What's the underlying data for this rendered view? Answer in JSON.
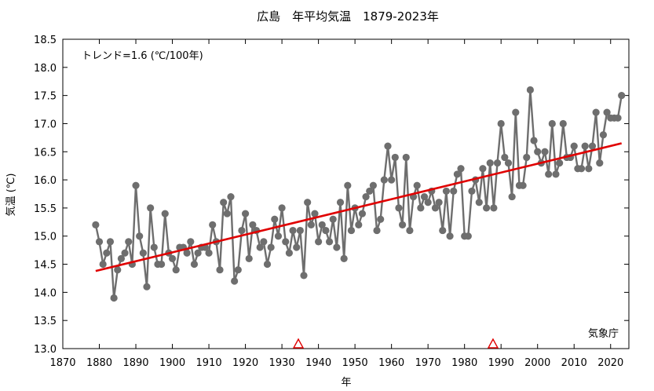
{
  "chart_data": {
    "type": "line",
    "title": "広島　年平均気温　1879-2023年",
    "xlabel": "年",
    "ylabel": "気温 (℃)",
    "xlim": [
      1870,
      2025
    ],
    "ylim": [
      13.0,
      18.5
    ],
    "x_ticks": [
      1870,
      1880,
      1890,
      1900,
      1910,
      1920,
      1930,
      1940,
      1950,
      1960,
      1970,
      1980,
      1990,
      2000,
      2010,
      2020
    ],
    "y_ticks": [
      13.0,
      13.5,
      14.0,
      14.5,
      15.0,
      15.5,
      16.0,
      16.5,
      17.0,
      17.5,
      18.0,
      18.5
    ],
    "x_tick_labels": [
      "1870",
      "1880",
      "1890",
      "1900",
      "1910",
      "1920",
      "1930",
      "1940",
      "1950",
      "1960",
      "1970",
      "1980",
      "1990",
      "2000",
      "2010",
      "2020"
    ],
    "y_tick_labels": [
      "13.0",
      "13.5",
      "14.0",
      "14.5",
      "15.0",
      "15.5",
      "16.0",
      "16.5",
      "17.0",
      "17.5",
      "18.0",
      "18.5"
    ],
    "grid": false,
    "legend": "none",
    "series": [
      {
        "color": "#6e6e6e",
        "x": [
          1879,
          1880,
          1881,
          1882,
          1883,
          1884,
          1885,
          1886,
          1887,
          1888,
          1889,
          1890,
          1891,
          1892,
          1893,
          1894,
          1895,
          1896,
          1897,
          1898,
          1899,
          1900,
          1901,
          1902,
          1903,
          1904,
          1905,
          1906,
          1907,
          1908,
          1909,
          1910,
          1911,
          1912,
          1913,
          1914,
          1915,
          1916,
          1917,
          1918,
          1919,
          1920,
          1921,
          1922,
          1923,
          1924,
          1925,
          1926,
          1927,
          1928,
          1929,
          1930,
          1931,
          1932,
          1933,
          1934,
          1935,
          1936,
          1937,
          1938,
          1939,
          1940,
          1941,
          1942,
          1943,
          1944,
          1945,
          1946,
          1947,
          1948,
          1949,
          1950,
          1951,
          1952,
          1953,
          1954,
          1955,
          1956,
          1957,
          1958,
          1959,
          1960,
          1961,
          1962,
          1963,
          1964,
          1965,
          1966,
          1967,
          1968,
          1969,
          1970,
          1971,
          1972,
          1973,
          1974,
          1975,
          1976,
          1977,
          1978,
          1979,
          1980,
          1981,
          1982,
          1983,
          1984,
          1985,
          1986,
          1987,
          1988,
          1989,
          1990,
          1991,
          1992,
          1993,
          1994,
          1995,
          1996,
          1997,
          1998,
          1999,
          2000,
          2001,
          2002,
          2003,
          2004,
          2005,
          2006,
          2007,
          2008,
          2009,
          2010,
          2011,
          2012,
          2013,
          2014,
          2015,
          2016,
          2017,
          2018,
          2019,
          2020,
          2021,
          2022,
          2023
        ],
        "y": [
          15.2,
          14.9,
          14.5,
          14.7,
          14.9,
          13.9,
          14.4,
          14.6,
          14.7,
          14.9,
          14.5,
          15.9,
          15.0,
          14.7,
          14.1,
          15.5,
          14.8,
          14.5,
          14.5,
          15.4,
          14.7,
          14.6,
          14.4,
          14.8,
          14.8,
          14.7,
          14.9,
          14.5,
          14.7,
          14.8,
          14.8,
          14.7,
          15.2,
          14.9,
          14.4,
          15.6,
          15.4,
          15.7,
          14.2,
          14.4,
          15.1,
          15.4,
          14.6,
          15.2,
          15.1,
          14.8,
          14.9,
          14.5,
          14.8,
          15.3,
          15.0,
          15.5,
          14.9,
          14.7,
          15.1,
          14.8,
          15.1,
          14.3,
          15.6,
          15.2,
          15.4,
          14.9,
          15.2,
          15.1,
          14.9,
          15.3,
          14.8,
          15.6,
          14.6,
          15.9,
          15.1,
          15.5,
          15.2,
          15.4,
          15.7,
          15.8,
          15.9,
          15.1,
          15.3,
          16.0,
          16.6,
          16.0,
          16.4,
          15.5,
          15.2,
          16.4,
          15.1,
          15.7,
          15.9,
          15.5,
          15.7,
          15.6,
          15.8,
          15.5,
          15.6,
          15.1,
          15.8,
          15.0,
          15.8,
          16.1,
          16.2,
          15.0,
          15.0,
          15.8,
          16.0,
          15.6,
          16.2,
          15.5,
          16.3,
          15.5,
          16.3,
          17.0,
          16.4,
          16.3,
          15.7,
          17.2,
          15.9,
          15.9,
          16.4,
          17.6,
          16.7,
          16.5,
          16.3,
          16.5,
          16.1,
          17.0,
          16.1,
          16.3,
          17.0,
          16.4,
          16.4,
          16.6,
          16.2,
          16.2,
          16.6,
          16.2,
          16.6,
          17.2,
          16.3,
          16.8,
          17.2,
          17.1,
          17.1,
          17.1,
          17.5
        ]
      }
    ],
    "trend": {
      "color": "#e00000",
      "x": [
        1879,
        2023
      ],
      "y": [
        14.38,
        16.65
      ],
      "label": "トレンド=1.6 (℃/100年)"
    },
    "markers": {
      "color": "#e00000",
      "x": [
        1934.5,
        1987.8
      ],
      "y": [
        13.0,
        13.0
      ]
    },
    "source_label": "気象庁"
  }
}
